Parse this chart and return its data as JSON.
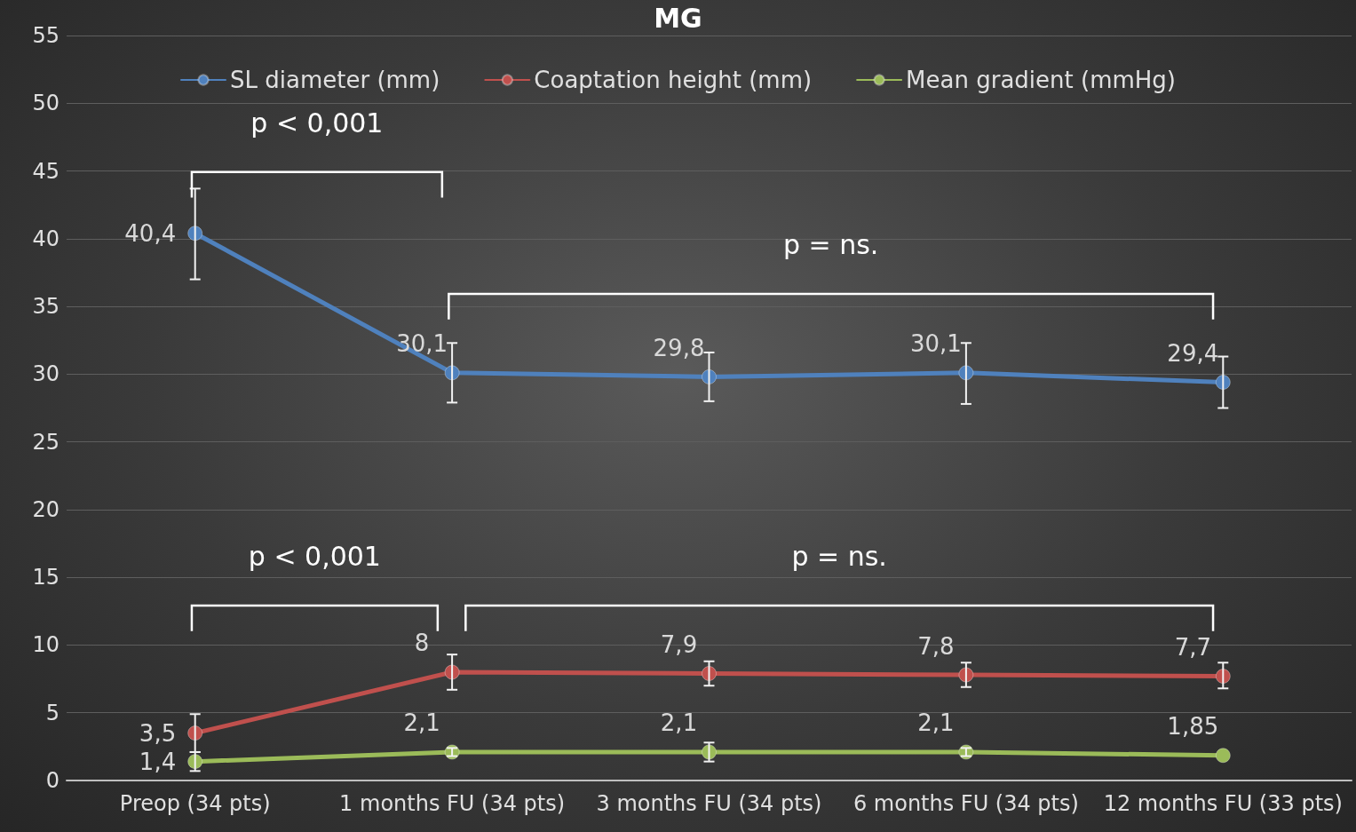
{
  "chart_data": {
    "type": "line",
    "title": "MG",
    "categories": [
      "Preop (34 pts)",
      "1 months FU (34 pts)",
      "3 months FU (34 pts)",
      "6 months FU (34 pts)",
      "12 months FU (33 pts)"
    ],
    "series": [
      {
        "name": "SL diameter (mm)",
        "color": "#4f81bd",
        "values": [
          40.4,
          30.1,
          29.8,
          30.1,
          29.4
        ],
        "value_labels": [
          "40,4",
          "30,1",
          "29,8",
          "30,1",
          "29,4"
        ],
        "errors": [
          [
            37.0,
            43.7
          ],
          [
            27.9,
            32.3
          ],
          [
            28.0,
            31.6
          ],
          [
            27.8,
            32.3
          ],
          [
            27.5,
            31.3
          ]
        ]
      },
      {
        "name": "Coaptation height (mm)",
        "color": "#c0504d",
        "values": [
          3.5,
          8,
          7.9,
          7.8,
          7.7
        ],
        "value_labels": [
          "3,5",
          "8",
          "7,9",
          "7,8",
          "7,7"
        ],
        "errors": [
          [
            2.1,
            4.9
          ],
          [
            6.7,
            9.3
          ],
          [
            7.0,
            8.8
          ],
          [
            6.9,
            8.7
          ],
          [
            6.8,
            8.7
          ]
        ]
      },
      {
        "name": "Mean gradient (mmHg)",
        "color": "#9bbb59",
        "values": [
          1.4,
          2.1,
          2.1,
          2.1,
          1.85
        ],
        "value_labels": [
          "1,4",
          "2,1",
          "2,1",
          "2,1",
          "1,85"
        ],
        "errors": [
          [
            0.7,
            2.1
          ],
          [
            1.8,
            2.4
          ],
          [
            1.4,
            2.8
          ],
          [
            1.8,
            2.4
          ],
          null
        ]
      }
    ],
    "annotations": [
      "p < 0,001",
      "p = ns.",
      "p < 0,001",
      "p = ns."
    ],
    "ylim": [
      0,
      55
    ],
    "yticks": [
      0,
      5,
      10,
      15,
      20,
      25,
      30,
      35,
      40,
      45,
      50,
      55
    ],
    "grid": "y",
    "legend": "top",
    "marker": "circle",
    "line_style": "solid"
  }
}
